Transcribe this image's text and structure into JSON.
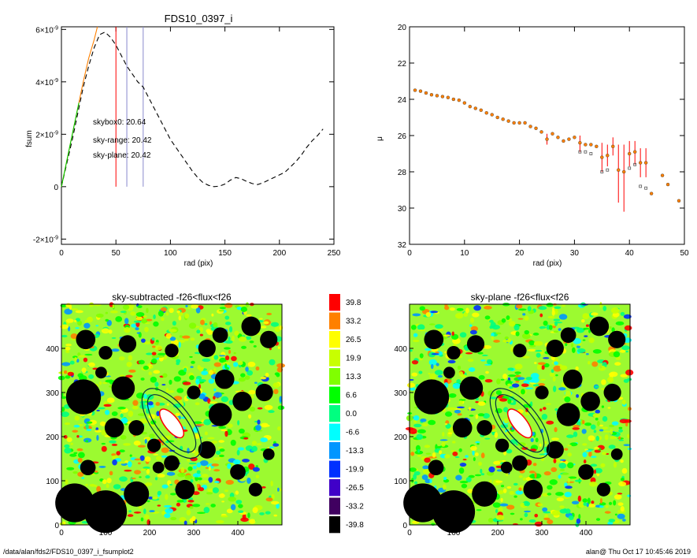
{
  "footer": {
    "path": "/data/alan/fds2/FDS10_0397_i_fsumplot2",
    "user_time": "alan@  Thu Oct 17 10:45:46 2019"
  },
  "colors": {
    "red": "#ff0000",
    "green": "#00cc00",
    "orange": "#ff8000",
    "dash": "#000000"
  },
  "chart_data": [
    {
      "type": "line",
      "title": "FDS10_0397_i",
      "xlabel": "rad (pix)",
      "ylabel": "fsum",
      "xlim": [
        0,
        250
      ],
      "ylim": [
        -2.2e-09,
        6.1e-09
      ],
      "xticks": [
        0,
        50,
        100,
        150,
        200,
        250
      ],
      "yticks": [
        {
          "v": -2e-09,
          "m": "-2",
          "e": "-9"
        },
        {
          "v": 0,
          "m": "0",
          "e": ""
        },
        {
          "v": 2e-09,
          "m": "2",
          "e": "-9"
        },
        {
          "v": 4e-09,
          "m": "4",
          "e": "-9"
        },
        {
          "v": 6e-09,
          "m": "6",
          "e": "-9"
        }
      ],
      "series": [
        {
          "style": "dashed",
          "color": "#000000",
          "x": [
            0,
            5,
            10,
            15,
            20,
            25,
            30,
            35,
            40,
            45,
            50,
            55,
            60,
            65,
            70,
            75,
            80,
            85,
            90,
            95,
            100,
            105,
            110,
            115,
            120,
            125,
            130,
            135,
            140,
            145,
            150,
            155,
            160,
            165,
            170,
            175,
            180,
            185,
            190,
            195,
            200,
            205,
            210,
            215,
            220,
            225,
            230,
            235,
            240
          ],
          "y": [
            0,
            9e-10,
            1.8e-09,
            2.8e-09,
            3.8e-09,
            4.6e-09,
            5.3e-09,
            5.8e-09,
            5.9e-09,
            5.7e-09,
            5.4e-09,
            5e-09,
            4.6e-09,
            4.3e-09,
            4e-09,
            3.8e-09,
            3.4e-09,
            3e-09,
            2.6e-09,
            2.2e-09,
            1.8e-09,
            1.5e-09,
            1.2e-09,
            9e-10,
            6e-10,
            3.5e-10,
            1.5e-10,
            5e-11,
            0.0,
            2e-11,
            1e-10,
            2.5e-10,
            3.5e-10,
            3e-10,
            2e-10,
            1.2e-10,
            8e-11,
            1.5e-10,
            2.5e-10,
            3.5e-10,
            4.5e-10,
            5.5e-10,
            7.5e-10,
            9.5e-10,
            1.2e-09,
            1.5e-09,
            1.75e-09,
            1.95e-09,
            2.2e-09
          ]
        },
        {
          "style": "solid",
          "color": "#ff8000",
          "x": [
            0,
            5,
            10,
            15,
            20,
            25,
            30,
            33
          ],
          "y": [
            0,
            1e-09,
            2e-09,
            3e-09,
            4e-09,
            4.9e-09,
            5.6e-09,
            6.1e-09
          ]
        },
        {
          "style": "solid",
          "color": "#00cc00",
          "x": [
            0,
            4,
            8,
            12,
            16
          ],
          "y": [
            0,
            8e-10,
            1.6e-09,
            2.4e-09,
            3.2e-09
          ]
        }
      ],
      "vlines": [
        {
          "x": 50,
          "color": "#ff0000"
        },
        {
          "x": 60,
          "color": "#8888cc"
        },
        {
          "x": 75,
          "color": "#8888cc"
        }
      ],
      "annotations": [
        {
          "text": "skybox0: 20.64",
          "color": "#000000"
        },
        {
          "text": "sky-range: 20.42",
          "color": "#ff0000"
        },
        {
          "text": "sky-plane: 20.42",
          "color": "#00cc00"
        }
      ]
    },
    {
      "type": "scatter",
      "title": "",
      "xlabel": "rad (pix)",
      "ylabel": "μ",
      "xlim": [
        0,
        50
      ],
      "ylim": [
        32,
        20
      ],
      "xticks": [
        0,
        10,
        20,
        30,
        40,
        50
      ],
      "yticks": [
        20,
        22,
        24,
        26,
        28,
        30,
        32
      ],
      "points": [
        {
          "x": 1,
          "y": 23.5
        },
        {
          "x": 2,
          "y": 23.55
        },
        {
          "x": 3,
          "y": 23.65
        },
        {
          "x": 4,
          "y": 23.75
        },
        {
          "x": 5,
          "y": 23.8
        },
        {
          "x": 6,
          "y": 23.85
        },
        {
          "x": 7,
          "y": 23.9
        },
        {
          "x": 8,
          "y": 24.0
        },
        {
          "x": 9,
          "y": 24.05
        },
        {
          "x": 10,
          "y": 24.2
        },
        {
          "x": 11,
          "y": 24.4
        },
        {
          "x": 12,
          "y": 24.5
        },
        {
          "x": 13,
          "y": 24.6
        },
        {
          "x": 14,
          "y": 24.75
        },
        {
          "x": 15,
          "y": 24.85
        },
        {
          "x": 16,
          "y": 25.0
        },
        {
          "x": 17,
          "y": 25.1
        },
        {
          "x": 18,
          "y": 25.2
        },
        {
          "x": 19,
          "y": 25.3
        },
        {
          "x": 20,
          "y": 25.3
        },
        {
          "x": 21,
          "y": 25.3
        },
        {
          "x": 22,
          "y": 25.5
        },
        {
          "x": 23,
          "y": 25.6
        },
        {
          "x": 24,
          "y": 25.8
        },
        {
          "x": 25,
          "y": 26.2
        },
        {
          "x": 26,
          "y": 25.9
        },
        {
          "x": 27,
          "y": 26.1
        },
        {
          "x": 28,
          "y": 26.3
        },
        {
          "x": 29,
          "y": 26.2
        },
        {
          "x": 30,
          "y": 26.1
        },
        {
          "x": 31,
          "y": 26.4
        },
        {
          "x": 32,
          "y": 26.5
        },
        {
          "x": 33,
          "y": 26.5
        },
        {
          "x": 34,
          "y": 26.6
        },
        {
          "x": 35,
          "y": 27.2
        },
        {
          "x": 36,
          "y": 27.1
        },
        {
          "x": 37,
          "y": 26.6
        },
        {
          "x": 38,
          "y": 27.9
        },
        {
          "x": 39,
          "y": 28.0
        },
        {
          "x": 40,
          "y": 27.0
        },
        {
          "x": 41,
          "y": 26.9
        },
        {
          "x": 42,
          "y": 27.5
        },
        {
          "x": 43,
          "y": 27.5
        },
        {
          "x": 44,
          "y": 29.2
        },
        {
          "x": 46,
          "y": 28.2
        },
        {
          "x": 47,
          "y": 28.7
        },
        {
          "x": 49,
          "y": 29.6
        }
      ],
      "errors": [
        {
          "x": 25,
          "lo": 25.9,
          "hi": 26.5
        },
        {
          "x": 31,
          "lo": 26.0,
          "hi": 26.9
        },
        {
          "x": 35,
          "lo": 26.4,
          "hi": 28.0
        },
        {
          "x": 36,
          "lo": 26.5,
          "hi": 27.7
        },
        {
          "x": 37,
          "lo": 26.1,
          "hi": 27.1
        },
        {
          "x": 38,
          "lo": 26.5,
          "hi": 29.7
        },
        {
          "x": 39,
          "lo": 26.5,
          "hi": 30.2
        },
        {
          "x": 40,
          "lo": 26.3,
          "hi": 27.7
        },
        {
          "x": 41,
          "lo": 26.3,
          "hi": 27.6
        },
        {
          "x": 42,
          "lo": 26.7,
          "hi": 28.3
        },
        {
          "x": 43,
          "lo": 26.7,
          "hi": 28.3
        }
      ],
      "alt_points": [
        {
          "x": 31,
          "y": 26.9
        },
        {
          "x": 32,
          "y": 26.9
        },
        {
          "x": 33,
          "y": 27.0
        },
        {
          "x": 35,
          "y": 28.0
        },
        {
          "x": 36,
          "y": 27.9
        },
        {
          "x": 40,
          "y": 27.8
        },
        {
          "x": 41,
          "y": 27.6
        },
        {
          "x": 42,
          "y": 28.8
        },
        {
          "x": 43,
          "y": 28.9
        }
      ]
    },
    {
      "type": "heatmap",
      "title": "sky-subtracted -f26<flux<f26",
      "xlim": [
        0,
        500
      ],
      "ylim": [
        0,
        500
      ],
      "xticks": [
        0,
        100,
        200,
        300,
        400
      ],
      "yticks": [
        0,
        100,
        200,
        300,
        400
      ]
    },
    {
      "type": "heatmap",
      "title": "sky-plane -f26<flux<f26",
      "xlim": [
        0,
        500
      ],
      "ylim": [
        0,
        500
      ],
      "xticks": [
        0,
        100,
        200,
        300,
        400
      ],
      "yticks": [
        0,
        100,
        200,
        300,
        400
      ]
    },
    {
      "type": "colorbar",
      "levels": [
        {
          "label": "39.8",
          "color": "#ff0000"
        },
        {
          "label": "33.2",
          "color": "#ff8000"
        },
        {
          "label": "26.5",
          "color": "#ffff00"
        },
        {
          "label": "19.9",
          "color": "#c8ff00"
        },
        {
          "label": "13.3",
          "color": "#80ff00"
        },
        {
          "label": "6.6",
          "color": "#00ff00"
        },
        {
          "label": "0.0",
          "color": "#00ff80"
        },
        {
          "label": "-6.6",
          "color": "#00ffff"
        },
        {
          "label": "-13.3",
          "color": "#0096ff"
        },
        {
          "label": "-19.9",
          "color": "#0030ff"
        },
        {
          "label": "-26.5",
          "color": "#4000c8"
        },
        {
          "label": "-33.2",
          "color": "#400060"
        },
        {
          "label": "-39.8",
          "color": "#000000"
        }
      ]
    }
  ]
}
